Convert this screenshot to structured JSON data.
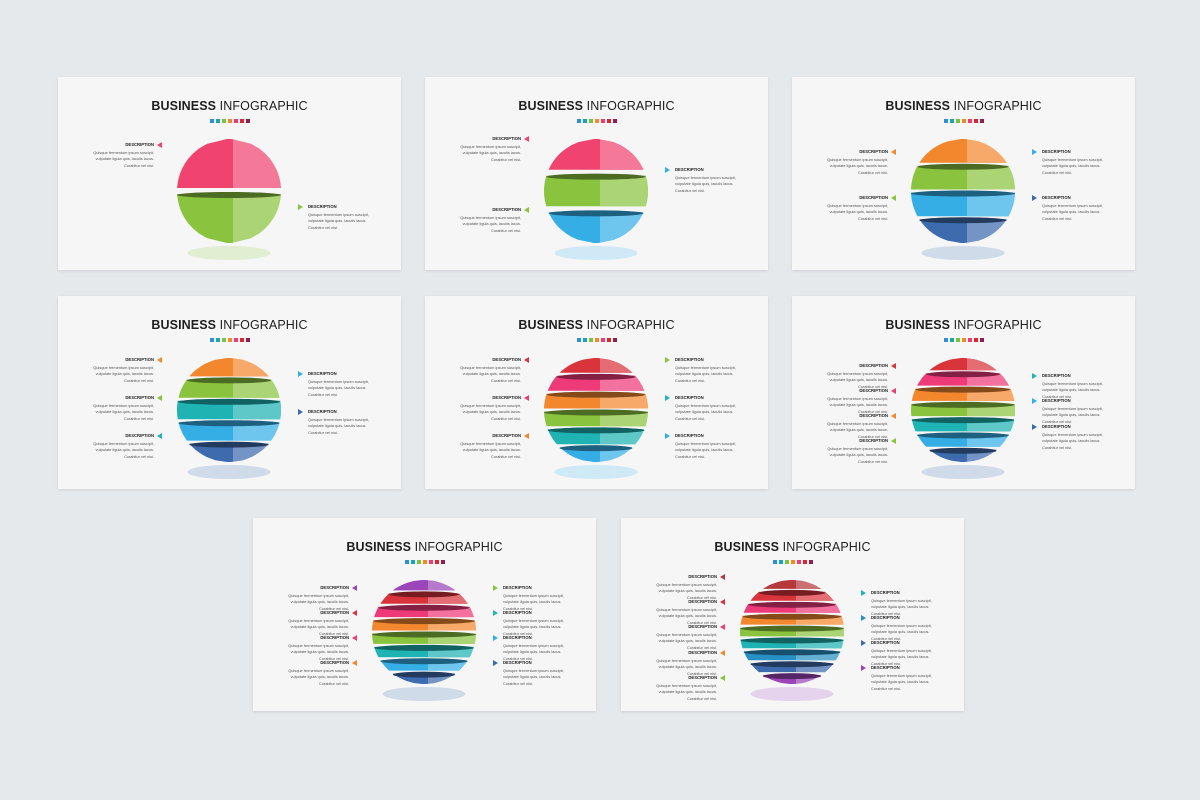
{
  "colors": {
    "background": "#e6e9ec",
    "slide": "#f6f6f6",
    "dots": [
      "#2f8fd8",
      "#1ca3b4",
      "#7cc242",
      "#f08a24",
      "#ef3a7a",
      "#d8282e",
      "#8e1f4a"
    ]
  },
  "slide_title": {
    "bold": "BUSINESS",
    "rest": "INFOGRAPHIC"
  },
  "description_label": "DESCRIPTION",
  "body_lines": [
    "Quisque fermentum ipsum suscipit,",
    "vulputate ligula quis, iaculis lacus.",
    "Curabitur vel nisi."
  ],
  "slides": [
    {
      "segments": 2,
      "colors": [
        "#f0436f",
        "#8ac43f"
      ],
      "descriptions": 2
    },
    {
      "segments": 3,
      "colors": [
        "#f0436f",
        "#8ac43f",
        "#35aee6"
      ],
      "descriptions": 2
    },
    {
      "segments": 4,
      "colors": [
        "#f2872e",
        "#8ac43f",
        "#35aee6",
        "#3d6bad"
      ],
      "descriptions": 4
    },
    {
      "segments": 5,
      "colors": [
        "#f2872e",
        "#8ac43f",
        "#1fb3b3",
        "#35aee6",
        "#3d6bad"
      ],
      "descriptions": 5
    },
    {
      "segments": 6,
      "colors": [
        "#d9343c",
        "#ef3a7a",
        "#f2872e",
        "#8ac43f",
        "#1fb3b3",
        "#35aee6"
      ],
      "descriptions": 6
    },
    {
      "segments": 7,
      "colors": [
        "#d9343c",
        "#ef3a7a",
        "#f2872e",
        "#8ac43f",
        "#1fb3b3",
        "#35aee6",
        "#3d6bad"
      ],
      "descriptions": 7
    },
    {
      "segments": 8,
      "colors": [
        "#9b45b8",
        "#d9343c",
        "#ef3a7a",
        "#f2872e",
        "#8ac43f",
        "#1fb3b3",
        "#35aee6",
        "#3d6bad"
      ],
      "descriptions": 8
    },
    {
      "segments": 9,
      "colors": [
        "#b5383d",
        "#d9343c",
        "#ef3a7a",
        "#f2872e",
        "#8ac43f",
        "#1fb3b3",
        "#2990c5",
        "#3d6bad",
        "#9b45b8"
      ],
      "descriptions": 9
    }
  ]
}
